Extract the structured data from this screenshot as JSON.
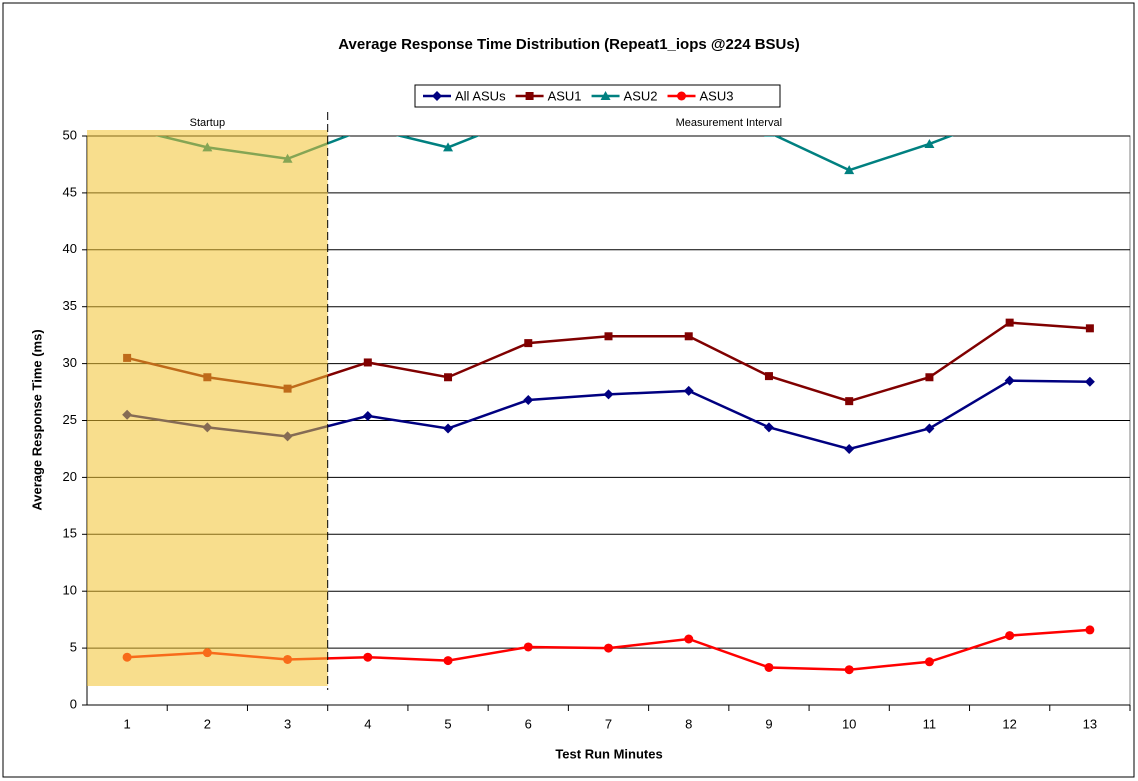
{
  "chart_data": {
    "type": "line",
    "title": "Average Response Time Distribution (Repeat1_iops @224 BSUs)",
    "x_label": "Test Run Minutes",
    "y_label": "Average Response Time (ms)",
    "annotations": [
      "Startup",
      "Measurement Interval"
    ],
    "categories": [
      "1",
      "2",
      "3",
      "4",
      "5",
      "6",
      "7",
      "8",
      "9",
      "10",
      "11",
      "12",
      "13"
    ],
    "series": [
      {
        "name": "All ASUs",
        "color": "#000080",
        "marker": "diamond",
        "values": [
          25.5,
          24.4,
          23.6,
          25.4,
          24.3,
          26.8,
          27.3,
          27.6,
          24.4,
          22.5,
          24.3,
          28.5,
          28.4
        ]
      },
      {
        "name": "ASU1",
        "color": "#800000",
        "marker": "square",
        "values": [
          30.5,
          28.8,
          27.8,
          30.1,
          28.8,
          31.8,
          32.4,
          32.4,
          28.9,
          26.7,
          28.8,
          33.6,
          33.1
        ]
      },
      {
        "name": "ASU2",
        "color": "#008080",
        "marker": "triangle",
        "values": [
          50.7,
          49.0,
          48.0,
          50.7,
          49.0,
          51.8,
          52.0,
          52.0,
          50.3,
          47.0,
          49.3,
          52.0,
          52.0
        ]
      },
      {
        "name": "ASU3",
        "color": "#ff0000",
        "marker": "circle",
        "values": [
          4.2,
          4.6,
          4.0,
          4.2,
          3.9,
          5.1,
          5.0,
          5.8,
          3.3,
          3.1,
          3.8,
          6.1,
          6.6
        ]
      }
    ],
    "ylim": [
      0,
      50
    ],
    "yticks": [
      0,
      5,
      10,
      15,
      20,
      25,
      30,
      35,
      40,
      45,
      50
    ],
    "grid": true
  }
}
